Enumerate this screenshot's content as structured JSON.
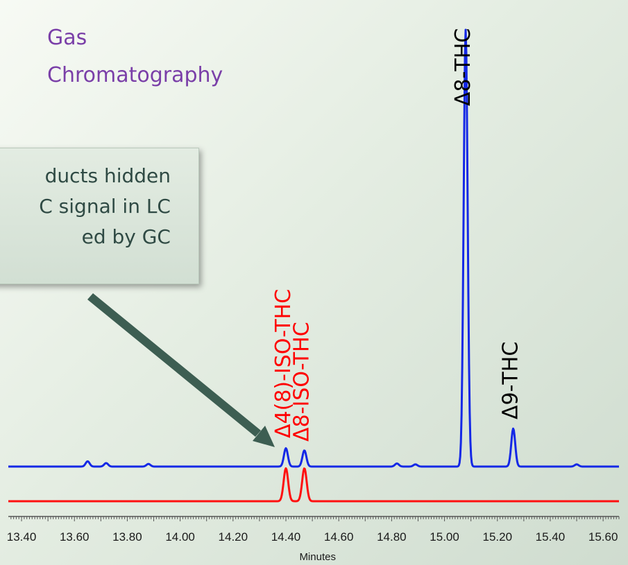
{
  "title_lines": [
    "Gas",
    "Chromatography"
  ],
  "callout_lines": [
    "ducts hidden",
    "C signal in LC",
    "ed by GC"
  ],
  "colors": {
    "gc_trace": "#1428e6",
    "lc_trace": "#ff1010",
    "title": "#7a3fa8",
    "callout_text": "#2f4a44",
    "arrow": "#3d5e52",
    "label_red": "#ff0000",
    "label_black": "#000000"
  },
  "chart_data": {
    "type": "line",
    "xlabel": "Minutes",
    "xlim": [
      13.35,
      15.66
    ],
    "x_ticks": [
      "13.40",
      "13.60",
      "13.80",
      "14.00",
      "14.20",
      "14.40",
      "14.60",
      "14.80",
      "15.00",
      "15.20",
      "15.40",
      "15.60"
    ],
    "series": [
      {
        "key": "gc",
        "baseline": 0,
        "peaks": [
          {
            "x": 13.65,
            "h": 1.2
          },
          {
            "x": 13.72,
            "h": 0.8
          },
          {
            "x": 13.88,
            "h": 0.6
          },
          {
            "x": 14.4,
            "h": 4.2
          },
          {
            "x": 14.47,
            "h": 3.7
          },
          {
            "x": 14.82,
            "h": 0.7
          },
          {
            "x": 14.89,
            "h": 0.5
          },
          {
            "x": 15.08,
            "h": 100
          },
          {
            "x": 15.26,
            "h": 8.7
          },
          {
            "x": 15.5,
            "h": 0.5
          }
        ]
      },
      {
        "key": "lc",
        "baseline": 0,
        "peaks": [
          {
            "x": 14.4,
            "h": 9.5
          },
          {
            "x": 14.47,
            "h": 9.5
          }
        ]
      }
    ],
    "peak_labels": [
      {
        "text": "Δ4(8)-ISO-THC",
        "x": 14.4,
        "color": "label_red"
      },
      {
        "text": "Δ8-ISO-THC",
        "x": 14.47,
        "color": "label_red"
      },
      {
        "text": "Δ8-THC",
        "x": 15.08,
        "color": "label_black"
      },
      {
        "text": "Δ9-THC",
        "x": 15.26,
        "color": "label_black"
      }
    ]
  }
}
